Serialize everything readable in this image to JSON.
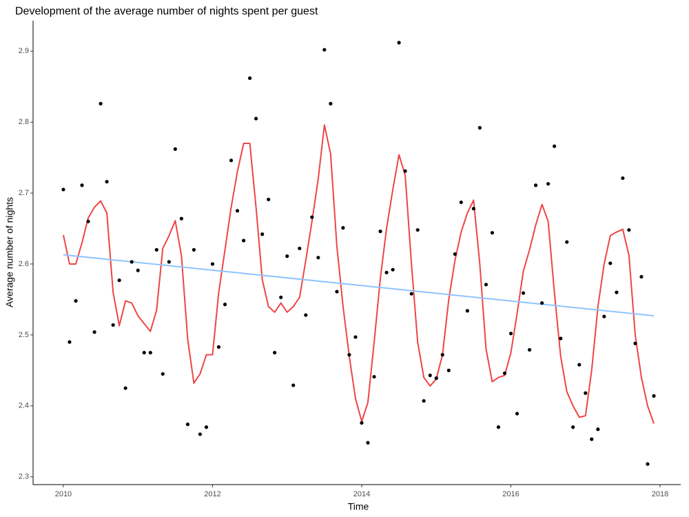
{
  "chart_data": {
    "type": "scatter",
    "title": "Development of the average number of nights spent per guest",
    "x_label": "Time",
    "y_label": "Average number of nights",
    "xlim": [
      2009.594,
      2018.277
    ],
    "ylim": [
      2.289,
      2.943
    ],
    "xticks": [
      2010,
      2012,
      2014,
      2016,
      2018
    ],
    "yticks": [
      2.3,
      2.4,
      2.5,
      2.6,
      2.7,
      2.8,
      2.9
    ],
    "grid": false,
    "x": [
      2010,
      2010.083,
      2010.167,
      2010.25,
      2010.333,
      2010.417,
      2010.5,
      2010.583,
      2010.667,
      2010.75,
      2010.833,
      2010.917,
      2011,
      2011.083,
      2011.167,
      2011.25,
      2011.333,
      2011.417,
      2011.5,
      2011.583,
      2011.667,
      2011.75,
      2011.833,
      2011.917,
      2012,
      2012.083,
      2012.167,
      2012.25,
      2012.333,
      2012.417,
      2012.5,
      2012.583,
      2012.667,
      2012.75,
      2012.833,
      2012.917,
      2013,
      2013.083,
      2013.167,
      2013.25,
      2013.333,
      2013.417,
      2013.5,
      2013.583,
      2013.667,
      2013.75,
      2013.833,
      2013.917,
      2014,
      2014.083,
      2014.167,
      2014.25,
      2014.333,
      2014.417,
      2014.5,
      2014.583,
      2014.667,
      2014.75,
      2014.833,
      2014.917,
      2015,
      2015.083,
      2015.167,
      2015.25,
      2015.333,
      2015.417,
      2015.5,
      2015.583,
      2015.667,
      2015.75,
      2015.833,
      2015.917,
      2016,
      2016.083,
      2016.167,
      2016.25,
      2016.333,
      2016.417,
      2016.5,
      2016.583,
      2016.667,
      2016.75,
      2016.833,
      2016.917,
      2017,
      2017.083,
      2017.167,
      2017.25,
      2017.333,
      2017.417,
      2017.5,
      2017.583,
      2017.667,
      2017.75,
      2017.833,
      2017.917
    ],
    "series": [
      {
        "kind": "points",
        "color": "#000000",
        "values": [
          2.705,
          2.49,
          2.548,
          2.711,
          2.66,
          2.504,
          2.826,
          2.716,
          2.514,
          2.577,
          2.425,
          2.603,
          2.591,
          2.475,
          2.475,
          2.62,
          2.445,
          2.603,
          2.762,
          2.664,
          2.374,
          2.62,
          2.36,
          2.37,
          2.6,
          2.483,
          2.543,
          2.746,
          2.675,
          2.633,
          2.862,
          2.805,
          2.642,
          2.691,
          2.475,
          2.553,
          2.611,
          2.429,
          2.622,
          2.528,
          2.666,
          2.609,
          2.902,
          2.826,
          2.561,
          2.651,
          2.472,
          2.497,
          2.376,
          2.348,
          2.441,
          2.646,
          2.588,
          2.592,
          2.912,
          2.731,
          2.558,
          2.648,
          2.407,
          2.443,
          2.439,
          2.472,
          2.45,
          2.614,
          2.687,
          2.534,
          2.678,
          2.792,
          2.571,
          2.644,
          2.37,
          2.446,
          2.502,
          2.389,
          2.559,
          2.479,
          2.711,
          2.545,
          2.713,
          2.766,
          2.495,
          2.631,
          2.37,
          2.458,
          2.418,
          2.353,
          2.367,
          2.526,
          2.601,
          2.56,
          2.721,
          2.648,
          2.488,
          2.582,
          2.318,
          2.414
        ]
      },
      {
        "kind": "line",
        "color": "#ee4444",
        "values": [
          2.641,
          2.6,
          2.6,
          2.63,
          2.665,
          2.68,
          2.689,
          2.672,
          2.56,
          2.513,
          2.548,
          2.545,
          2.527,
          2.516,
          2.505,
          2.535,
          2.622,
          2.64,
          2.661,
          2.612,
          2.494,
          2.432,
          2.445,
          2.472,
          2.472,
          2.56,
          2.62,
          2.68,
          2.73,
          2.77,
          2.77,
          2.68,
          2.578,
          2.54,
          2.532,
          2.545,
          2.532,
          2.54,
          2.553,
          2.605,
          2.66,
          2.72,
          2.796,
          2.755,
          2.625,
          2.54,
          2.47,
          2.41,
          2.378,
          2.405,
          2.49,
          2.58,
          2.65,
          2.705,
          2.754,
          2.725,
          2.6,
          2.49,
          2.44,
          2.428,
          2.438,
          2.472,
          2.55,
          2.605,
          2.645,
          2.672,
          2.69,
          2.6,
          2.48,
          2.434,
          2.44,
          2.443,
          2.475,
          2.53,
          2.59,
          2.62,
          2.655,
          2.684,
          2.66,
          2.56,
          2.47,
          2.42,
          2.4,
          2.384,
          2.386,
          2.45,
          2.54,
          2.6,
          2.64,
          2.645,
          2.649,
          2.612,
          2.5,
          2.44,
          2.4,
          2.375
        ]
      },
      {
        "kind": "line",
        "color": "#8ec3ff",
        "x": [
          2010,
          2017.917
        ],
        "values": [
          2.613,
          2.527
        ]
      }
    ]
  }
}
